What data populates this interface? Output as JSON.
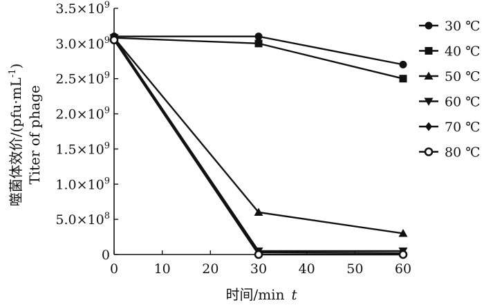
{
  "chart_data": {
    "type": "line",
    "title": "",
    "xlabel": "时间/min",
    "xlabel_var": "t",
    "ylabel_cn": "噬菌体效价/(pfu·mL",
    "ylabel_sup": "-1",
    "ylabel_close": ")",
    "ylabel_en": "Titer of phage",
    "x": [
      0,
      30,
      60
    ],
    "xlim": [
      0,
      60
    ],
    "ylim": [
      0,
      3500000000
    ],
    "xticks": [
      {
        "value": 0,
        "label": "0"
      },
      {
        "value": 10,
        "label": "10"
      },
      {
        "value": 20,
        "label": "20"
      },
      {
        "value": 30,
        "label": "30"
      },
      {
        "value": 40,
        "label": "40"
      },
      {
        "value": 50,
        "label": "50"
      },
      {
        "value": 60,
        "label": "60"
      }
    ],
    "yticks": [
      {
        "value": 0,
        "mant": "0",
        "exp": ""
      },
      {
        "value": 500000000,
        "mant": "5.0×10",
        "exp": "8"
      },
      {
        "value": 1000000000,
        "mant": "1.0×10",
        "exp": "9"
      },
      {
        "value": 1500000000,
        "mant": "1.5×10",
        "exp": "9"
      },
      {
        "value": 2000000000,
        "mant": "2.0×10",
        "exp": "9"
      },
      {
        "value": 2500000000,
        "mant": "2.5×10",
        "exp": "9"
      },
      {
        "value": 3000000000,
        "mant": "3.0×10",
        "exp": "9"
      },
      {
        "value": 3500000000,
        "mant": "3.5×10",
        "exp": "9"
      }
    ],
    "legend_position": "right",
    "grid": false,
    "series": [
      {
        "name": "30 ℃",
        "marker": "circle",
        "values": [
          3100000000,
          3100000000,
          2700000000
        ]
      },
      {
        "name": "40 ℃",
        "marker": "square",
        "values": [
          3080000000,
          3000000000,
          2500000000
        ]
      },
      {
        "name": "50 ℃",
        "marker": "triangle-up",
        "values": [
          3080000000,
          600000000,
          300000000
        ]
      },
      {
        "name": "60 ℃",
        "marker": "triangle-down",
        "values": [
          3080000000,
          50000000,
          50000000
        ]
      },
      {
        "name": "70 ℃",
        "marker": "diamond",
        "values": [
          3080000000,
          30000000,
          20000000
        ]
      },
      {
        "name": "80 ℃",
        "marker": "circle-open",
        "values": [
          3050000000,
          0,
          0
        ]
      }
    ]
  }
}
